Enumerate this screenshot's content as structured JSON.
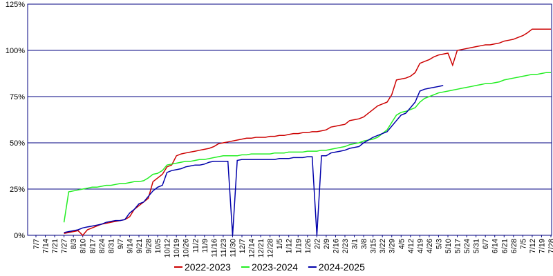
{
  "chart_data": {
    "type": "line",
    "categories": [
      "7/7",
      null,
      "7/14",
      null,
      "7/21",
      null,
      "7/27",
      null,
      "8/3",
      null,
      "8/10",
      null,
      "8/17",
      null,
      "8/24",
      null,
      "8/31",
      null,
      "9/7",
      null,
      "9/14",
      null,
      "9/21",
      null,
      "9/28",
      null,
      "10/5",
      null,
      "10/12",
      null,
      "10/19",
      null,
      "10/26",
      null,
      "11/2",
      null,
      "11/9",
      null,
      "11/16",
      null,
      "11/23",
      null,
      "11/30",
      null,
      "12/7",
      null,
      "12/14",
      null,
      "12/21",
      null,
      "12/28",
      null,
      "1/5",
      null,
      "1/12",
      null,
      "1/19",
      null,
      "1/26",
      null,
      "2/2",
      null,
      "2/9",
      null,
      "2/16",
      null,
      "2/23",
      null,
      "3/1",
      null,
      "3/8",
      null,
      "3/15",
      null,
      "3/22",
      null,
      "3/29",
      null,
      "4/5",
      null,
      "4/12",
      null,
      "4/19",
      null,
      "4/26",
      null,
      "5/3",
      null,
      "5/10",
      null,
      "5/17",
      null,
      "5/24",
      null,
      "5/31",
      null,
      "6/7",
      null,
      "6/14",
      null,
      "6/21",
      null,
      "6/28",
      null,
      "7/5",
      null,
      "7/12",
      null,
      "7/19",
      null,
      "7/28"
    ],
    "series": [
      {
        "name": "2022-2023",
        "color": "#cc0000",
        "values": [
          null,
          null,
          null,
          null,
          null,
          null,
          1,
          1.5,
          2,
          2.5,
          0,
          3,
          4,
          5,
          6,
          6.5,
          7,
          7.5,
          8,
          8.5,
          10,
          14,
          16,
          18,
          20,
          29,
          31,
          33,
          37,
          38,
          43,
          44,
          44.5,
          45,
          45.5,
          46,
          46.5,
          47,
          48,
          49.5,
          50,
          50.5,
          51,
          51.5,
          52,
          52.5,
          52.5,
          53,
          53,
          53,
          53.5,
          53.5,
          54,
          54,
          54.5,
          55,
          55,
          55.5,
          55.5,
          56,
          56,
          56.5,
          57,
          58.5,
          59,
          59.5,
          60,
          62,
          62.5,
          63,
          64,
          66,
          68,
          70,
          71,
          72,
          76,
          84,
          84.5,
          85,
          86,
          88,
          93,
          94,
          95,
          96.5,
          97.5,
          98,
          98.5,
          92,
          100,
          100.5,
          101,
          101.5,
          102,
          102.5,
          103,
          103,
          103.5,
          104,
          105,
          105.5,
          106,
          107,
          108,
          109.5,
          111.5,
          111.5,
          111.5,
          111.5,
          111.5
        ]
      },
      {
        "name": "2023-2024",
        "color": "#22ee22",
        "values": [
          null,
          null,
          null,
          null,
          null,
          null,
          7,
          23.5,
          24,
          24.5,
          25,
          25.5,
          26,
          26,
          26.5,
          27,
          27,
          27.5,
          28,
          28,
          28.5,
          29,
          29,
          29.5,
          31,
          33,
          33.5,
          35,
          38,
          38.5,
          39,
          39.5,
          40,
          40,
          40.5,
          41,
          41,
          41.5,
          42,
          42.5,
          43,
          43,
          43,
          43,
          43.5,
          43.5,
          44,
          44,
          44,
          44,
          44,
          44.5,
          44.5,
          44.5,
          45,
          45,
          45,
          45,
          45.5,
          45.5,
          45.5,
          46,
          46,
          46.5,
          47,
          47.5,
          48,
          49,
          49.5,
          50,
          51,
          51.5,
          52,
          53,
          55,
          57,
          61,
          65,
          66.5,
          67,
          68,
          69,
          72,
          74,
          75,
          76,
          77,
          77.5,
          78,
          78.5,
          79,
          79.5,
          80,
          80.5,
          81,
          81.5,
          82,
          82,
          82.5,
          83,
          84,
          84.5,
          85,
          85.5,
          86,
          86.5,
          87,
          87,
          87.5,
          88,
          88
        ]
      },
      {
        "name": "2024-2025",
        "color": "#0000aa",
        "values": [
          null,
          null,
          null,
          null,
          null,
          null,
          1.5,
          2,
          2.5,
          3,
          4,
          4.5,
          5,
          5.5,
          6,
          7,
          7.5,
          8,
          8,
          8.5,
          12,
          14,
          17,
          18,
          21,
          24,
          26,
          27,
          34,
          35,
          35.5,
          36,
          37,
          37.5,
          38,
          38,
          38.5,
          39.5,
          40,
          40,
          40,
          40,
          0,
          40.5,
          41,
          41,
          41,
          41,
          41,
          41,
          41,
          41,
          41.5,
          41.5,
          41.5,
          42,
          42,
          42,
          42.5,
          42.5,
          0,
          43,
          43,
          44.5,
          45,
          45.5,
          46,
          47,
          47.5,
          48,
          50,
          51.5,
          53,
          54,
          55,
          56,
          59,
          62,
          65,
          66,
          69,
          72,
          78,
          79,
          79.5,
          80,
          80.5,
          81,
          null,
          null,
          null,
          null,
          null,
          null,
          null,
          null,
          null,
          null,
          null,
          null,
          null,
          null,
          null,
          null,
          null,
          null,
          null,
          null,
          null,
          null,
          null
        ]
      }
    ],
    "ylim": [
      0,
      125
    ],
    "yticks": [
      {
        "value": 0,
        "label": "0%"
      },
      {
        "value": 25,
        "label": "25%"
      },
      {
        "value": 50,
        "label": "50%"
      },
      {
        "value": 75,
        "label": "75%"
      },
      {
        "value": 100,
        "label": "100%"
      },
      {
        "value": 125,
        "label": "125%"
      }
    ],
    "grid": true
  }
}
